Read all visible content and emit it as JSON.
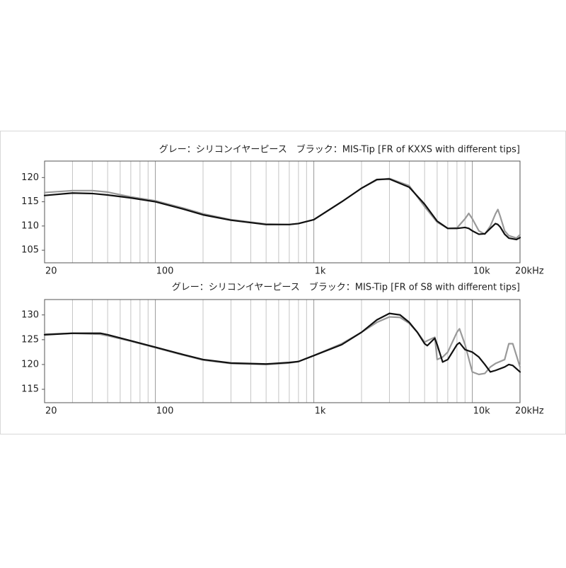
{
  "chart_data": [
    {
      "type": "line",
      "title": "グレー：シリコンイヤーピース　ブラック：MIS-Tip [FR of KXXS with different tips]",
      "xscale": "log",
      "xlim": [
        20,
        20000
      ],
      "xticks": [
        20,
        100,
        {
          "value": 1000,
          "label": "1k"
        },
        {
          "value": 10000,
          "label": "10k"
        },
        {
          "value": 20000,
          "label": "20kHz"
        }
      ],
      "xminor": [
        30,
        40,
        50,
        60,
        70,
        80,
        90,
        200,
        300,
        400,
        500,
        600,
        700,
        800,
        900,
        2000,
        3000,
        4000,
        5000,
        6000,
        7000,
        8000,
        9000
      ],
      "ylim": [
        102.4,
        123.4
      ],
      "yticks": [
        105,
        110,
        115,
        120
      ],
      "x": [
        20,
        30,
        40,
        50,
        70,
        100,
        150,
        200,
        300,
        500,
        700,
        800,
        1000,
        1500,
        2000,
        2500,
        3000,
        4000,
        5000,
        6000,
        7000,
        8000,
        9000,
        9500,
        10000,
        11000,
        12000,
        13000,
        14000,
        14500,
        15000,
        16000,
        17000,
        19000,
        20000
      ],
      "series": [
        {
          "color": "#999999",
          "values": [
            116.9,
            117.3,
            117.3,
            117.0,
            116.0,
            115.2,
            113.7,
            112.5,
            111.3,
            110.4,
            110.3,
            110.5,
            111.3,
            115.0,
            117.8,
            119.5,
            119.8,
            118.3,
            114.0,
            110.8,
            109.5,
            109.6,
            111.5,
            112.6,
            111.5,
            109.0,
            108.3,
            110.0,
            112.5,
            113.4,
            112.0,
            109.0,
            108.0,
            107.5,
            108.2
          ]
        },
        {
          "color": "#111111",
          "values": [
            116.3,
            116.8,
            116.7,
            116.4,
            115.8,
            115.0,
            113.5,
            112.3,
            111.2,
            110.3,
            110.3,
            110.5,
            111.3,
            115.0,
            117.8,
            119.6,
            119.7,
            118.0,
            114.5,
            111.0,
            109.5,
            109.5,
            109.7,
            109.5,
            109.0,
            108.3,
            108.4,
            109.5,
            110.5,
            110.3,
            109.8,
            108.3,
            107.5,
            107.2,
            107.6
          ]
        }
      ]
    },
    {
      "type": "line",
      "title": "グレー：シリコンイヤーピース　ブラック：MIS-Tip [FR of S8 with different tips]",
      "xscale": "log",
      "xlim": [
        20,
        20000
      ],
      "xticks": [
        20,
        100,
        {
          "value": 1000,
          "label": "1k"
        },
        {
          "value": 10000,
          "label": "10k"
        },
        {
          "value": 20000,
          "label": "20kHz"
        }
      ],
      "xminor": [
        30,
        40,
        50,
        60,
        70,
        80,
        90,
        200,
        300,
        400,
        500,
        600,
        700,
        800,
        900,
        2000,
        3000,
        4000,
        5000,
        6000,
        7000,
        8000,
        9000
      ],
      "ylim": [
        112.3,
        133.1
      ],
      "yticks": [
        115,
        120,
        125,
        130
      ],
      "x": [
        20,
        30,
        45,
        50,
        70,
        100,
        150,
        200,
        300,
        500,
        700,
        800,
        1000,
        1500,
        2000,
        2500,
        3000,
        3500,
        4000,
        4500,
        5000,
        5200,
        5800,
        6000,
        6500,
        7000,
        8000,
        8300,
        9000,
        10000,
        11000,
        12000,
        13000,
        14000,
        16000,
        17000,
        18000,
        20000
      ],
      "series": [
        {
          "color": "#999999",
          "values": [
            126.1,
            126.3,
            126.1,
            125.8,
            124.7,
            123.4,
            121.9,
            120.9,
            120.2,
            120.0,
            120.3,
            120.6,
            121.8,
            124.2,
            126.5,
            128.5,
            129.6,
            129.5,
            128.3,
            126.5,
            124.5,
            124.8,
            125.5,
            121.0,
            121.5,
            122.5,
            126.5,
            127.2,
            124.0,
            118.5,
            118.0,
            118.2,
            119.5,
            120.2,
            121.0,
            124.2,
            124.2,
            119.5
          ]
        },
        {
          "color": "#111111",
          "values": [
            126.0,
            126.3,
            126.3,
            126.0,
            124.8,
            123.5,
            122.0,
            121.0,
            120.3,
            120.1,
            120.4,
            120.6,
            121.8,
            124.0,
            126.5,
            129.0,
            130.3,
            130.0,
            128.5,
            126.5,
            124.2,
            123.8,
            125.3,
            124.0,
            120.5,
            121.0,
            124.0,
            124.4,
            123.0,
            122.5,
            121.5,
            120.0,
            118.5,
            118.8,
            119.5,
            120.0,
            119.8,
            118.5
          ]
        }
      ]
    }
  ]
}
